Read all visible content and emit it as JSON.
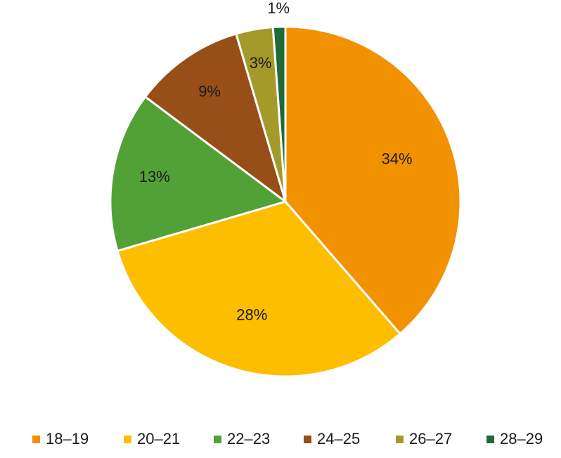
{
  "chart_data": {
    "type": "pie",
    "categories": [
      "18–19",
      "20–21",
      "22–23",
      "24–25",
      "26–27",
      "28–29"
    ],
    "values": [
      34,
      28,
      13,
      9,
      3,
      1
    ],
    "data_labels": [
      "34%",
      "28%",
      "13%",
      "9%",
      "3%",
      "1%"
    ],
    "colors": [
      "#F39200",
      "#FDBE00",
      "#52A136",
      "#974F17",
      "#A39A2A",
      "#1E6B35"
    ],
    "legend_position": "bottom",
    "start_angle_deg": 0,
    "direction": "clockwise"
  }
}
